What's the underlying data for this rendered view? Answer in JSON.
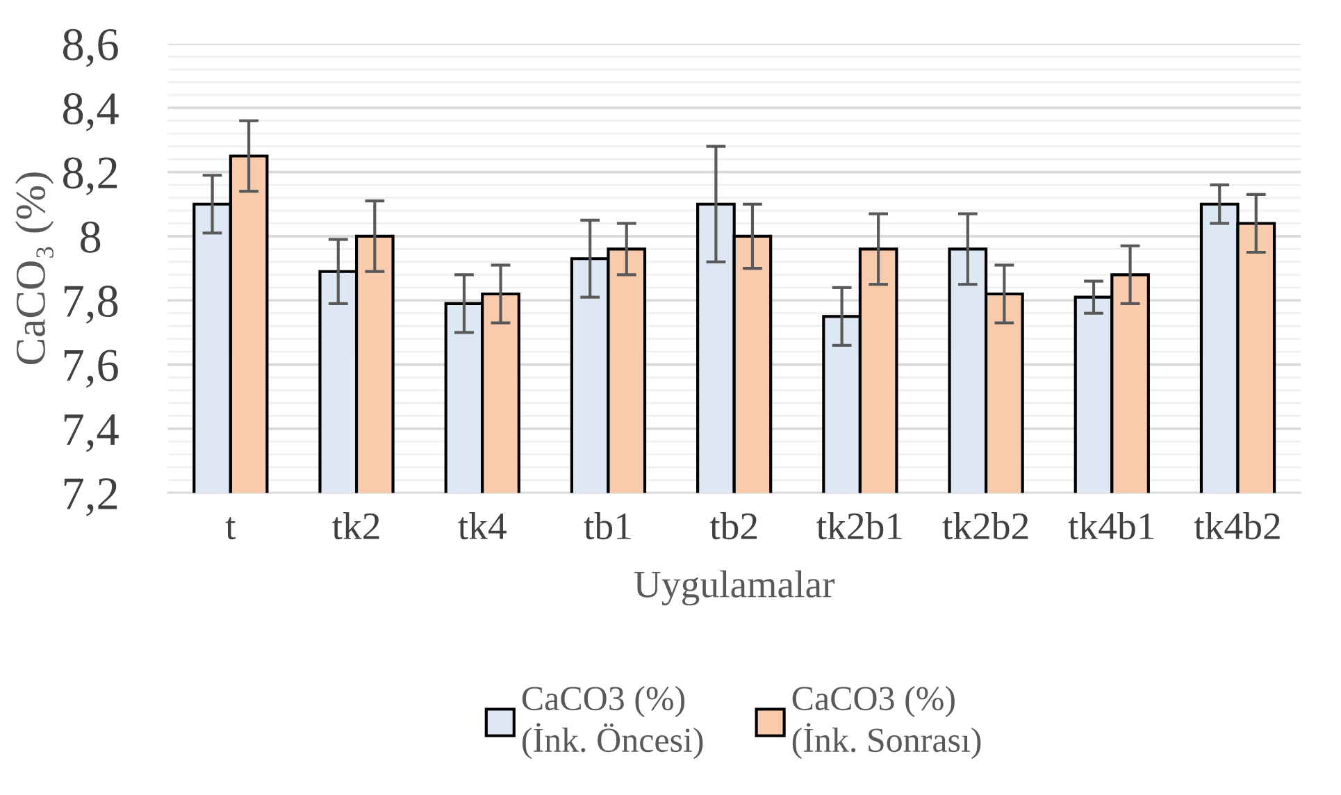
{
  "chart_data": {
    "type": "bar",
    "xlabel": "Uygulamalar",
    "ylabel": "CaCO₃ (%)",
    "categories": [
      "t",
      "tk2",
      "tk4",
      "tb1",
      "tb2",
      "tk2b1",
      "tk2b2",
      "tk4b1",
      "tk4b2"
    ],
    "series": [
      {
        "name": "CaCO3 (%)\n(İnk. Öncesi)",
        "color": "#dee8f4",
        "values": [
          8.1,
          7.89,
          7.79,
          7.93,
          8.1,
          7.75,
          7.96,
          7.81,
          8.1
        ],
        "errors": [
          0.09,
          0.1,
          0.09,
          0.12,
          0.18,
          0.09,
          0.11,
          0.05,
          0.06
        ]
      },
      {
        "name": "CaCO3 (%)\n(İnk. Sonrası)",
        "color": "#f7cbac",
        "values": [
          8.25,
          8.0,
          7.82,
          7.96,
          8.0,
          7.96,
          7.82,
          7.88,
          8.04
        ],
        "errors": [
          0.11,
          0.11,
          0.09,
          0.08,
          0.1,
          0.11,
          0.09,
          0.09,
          0.09
        ]
      }
    ],
    "ylim": [
      7.2,
      8.6
    ],
    "yticks": [
      {
        "value": 7.2,
        "label": "7,2"
      },
      {
        "value": 7.4,
        "label": "7,4"
      },
      {
        "value": 7.6,
        "label": "7,6"
      },
      {
        "value": 7.8,
        "label": "7,8"
      },
      8,
      {
        "value": 8.2,
        "label": "8,2"
      },
      {
        "value": 8.4,
        "label": "8,4"
      },
      {
        "value": 8.6,
        "label": "8,6"
      }
    ],
    "grid": "y",
    "legend": "bottom"
  }
}
